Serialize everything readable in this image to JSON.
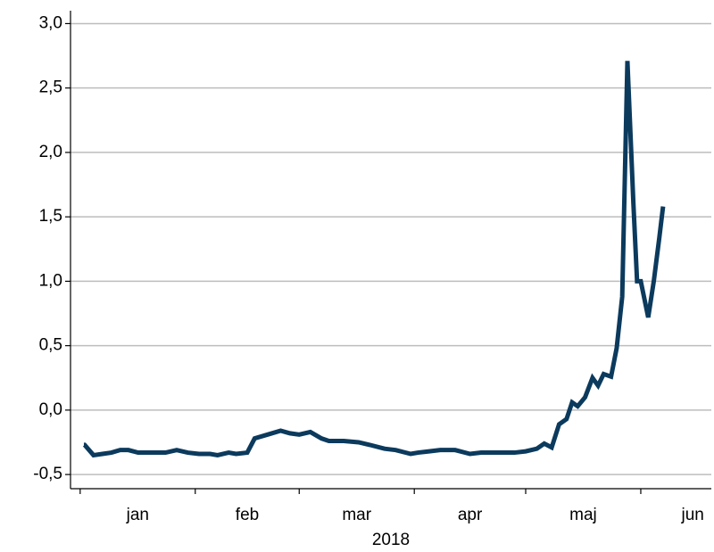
{
  "chart_data": {
    "type": "line",
    "xlabel": "2018",
    "x": [
      1,
      1.2,
      3.6,
      6,
      8.4,
      10.8,
      13,
      15.6,
      19,
      23,
      26,
      29,
      32,
      35,
      37,
      40,
      42,
      45,
      47,
      50.5,
      54,
      56.5,
      59,
      62,
      65,
      67,
      71,
      75,
      78,
      82,
      85,
      89,
      91,
      94,
      97,
      101,
      105,
      108,
      113,
      117,
      120,
      123,
      125,
      127,
      129,
      131,
      132.5,
      134,
      136,
      138,
      139.5,
      141,
      143,
      144.5,
      146,
      147.4,
      149,
      150,
      151,
      153,
      154.5,
      156,
      157
    ],
    "series": [
      {
        "color": "#0b3a5d",
        "values": [
          -0.27,
          -0.27,
          -0.35,
          -0.34,
          -0.33,
          -0.31,
          -0.31,
          -0.33,
          -0.33,
          -0.33,
          -0.31,
          -0.33,
          -0.34,
          -0.34,
          -0.35,
          -0.33,
          -0.34,
          -0.33,
          -0.22,
          -0.19,
          -0.16,
          -0.18,
          -0.19,
          -0.17,
          -0.22,
          -0.24,
          -0.24,
          -0.25,
          -0.27,
          -0.3,
          -0.31,
          -0.34,
          -0.33,
          -0.32,
          -0.31,
          -0.31,
          -0.34,
          -0.33,
          -0.33,
          -0.33,
          -0.32,
          -0.3,
          -0.26,
          -0.29,
          -0.11,
          -0.07,
          0.06,
          0.03,
          0.1,
          0.25,
          0.19,
          0.28,
          0.26,
          0.48,
          0.88,
          2.71,
          1.61,
          1.0,
          1.0,
          0.72,
          1.0,
          1.34,
          1.58
        ]
      }
    ],
    "xlim": [
      -2.6,
      170
    ],
    "xticks": [
      {
        "value": 15.5,
        "label": "jan"
      },
      {
        "value": 45,
        "label": "feb"
      },
      {
        "value": 74.5,
        "label": "mar"
      },
      {
        "value": 105,
        "label": "apr"
      },
      {
        "value": 135.5,
        "label": "maj"
      },
      {
        "value": 165,
        "label": "jun"
      }
    ],
    "xminorticks": [
      0,
      31,
      59,
      90,
      120,
      151
    ],
    "ylim": [
      -0.61,
      3.1
    ],
    "yticks": [
      {
        "value": -0.5,
        "label": "-0,5"
      },
      {
        "value": 0,
        "label": "0,0"
      },
      {
        "value": 0.5,
        "label": "0,5"
      },
      {
        "value": 1,
        "label": "1,0"
      },
      {
        "value": 1.5,
        "label": "1,5"
      },
      {
        "value": 2,
        "label": "2,0"
      },
      {
        "value": 2.5,
        "label": "2,5"
      },
      {
        "value": 3,
        "label": "3,0"
      }
    ],
    "grid": true
  }
}
